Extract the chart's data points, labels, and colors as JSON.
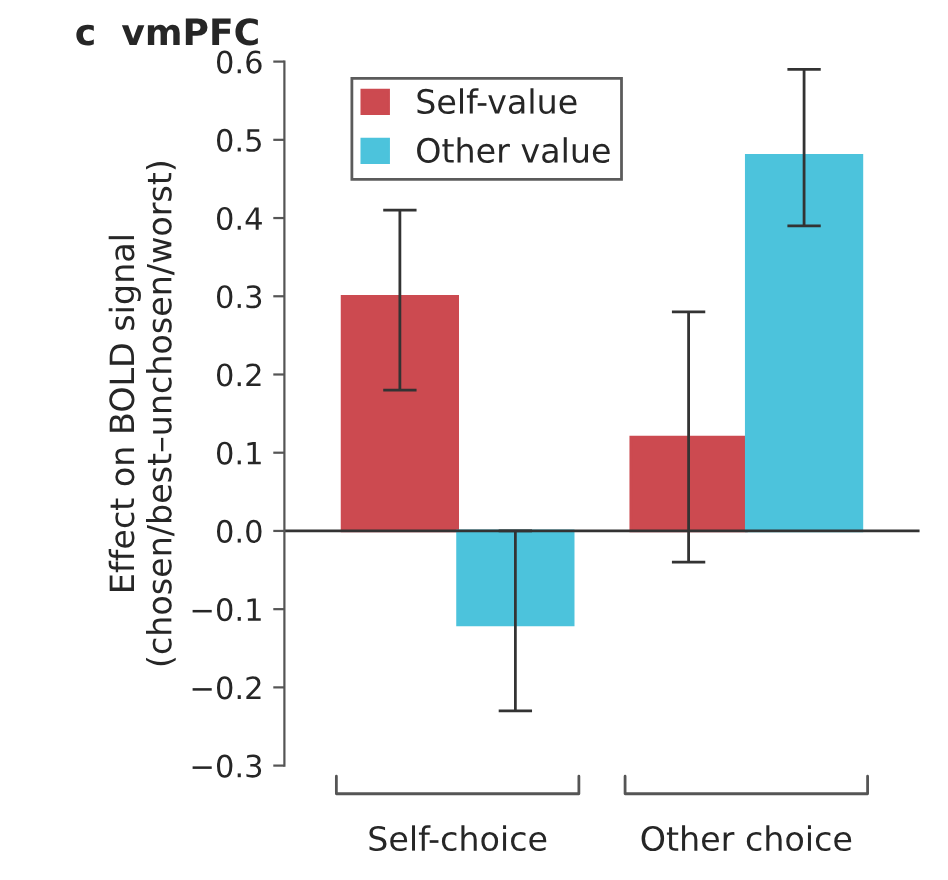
{
  "chart_data": {
    "type": "bar",
    "title": "c  vmPFC",
    "ylabel": "Effect on BOLD signal\n(chosen/best–unchosen/worst)",
    "categories": [
      "Self-choice",
      "Other choice"
    ],
    "series": [
      {
        "name": "Self-value",
        "color": "#cc4a50",
        "values": [
          0.3,
          0.12
        ],
        "errors": [
          [
            0.18,
            0.41
          ],
          [
            -0.04,
            0.28
          ]
        ]
      },
      {
        "name": "Other value",
        "color": "#4cc3dc",
        "values": [
          -0.12,
          0.48
        ],
        "errors": [
          [
            -0.23,
            0.0
          ],
          [
            0.39,
            0.59
          ]
        ]
      }
    ],
    "ylim": [
      -0.3,
      0.6
    ],
    "yticks": [
      {
        "value": -0.3,
        "label": "−0.3"
      },
      {
        "value": -0.2,
        "label": "−0.2"
      },
      {
        "value": -0.1,
        "label": "−0.1"
      },
      {
        "value": 0,
        "label": "0.0"
      },
      {
        "value": 0.1,
        "label": "0.1"
      },
      {
        "value": 0.2,
        "label": "0.2"
      },
      {
        "value": 0.3,
        "label": "0.3"
      },
      {
        "value": 0.4,
        "label": "0.4"
      },
      {
        "value": 0.5,
        "label": "0.5"
      },
      {
        "value": 0.6,
        "label": "0.6"
      }
    ],
    "ref_lines": [
      {
        "axis": "y",
        "value": 0,
        "color": "#333333"
      }
    ],
    "legend": "top left",
    "grid": false
  }
}
